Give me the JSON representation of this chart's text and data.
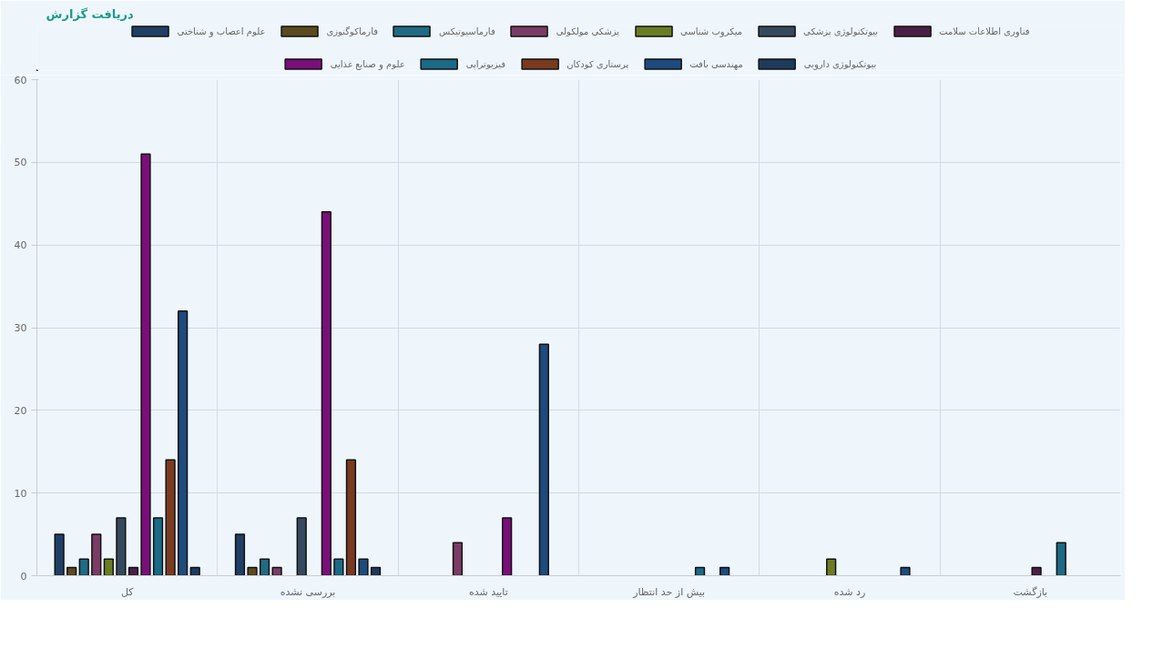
{
  "chart_data": {
    "type": "bar",
    "annotations": [
      "دریافت گزارش"
    ],
    "categories": [
      "کل",
      "بررسی نشده",
      "تایید شده",
      "بیش از حد انتظار",
      "رد شده",
      "بازگشت"
    ],
    "series": [
      {
        "name": "علوم اعصاب و شناختی",
        "color": "#1f3f66",
        "values": [
          5,
          5,
          0,
          0,
          0,
          0
        ]
      },
      {
        "name": "فارماکوگنوزی",
        "color": "#5c4a1e",
        "values": [
          1,
          1,
          0,
          0,
          0,
          0
        ]
      },
      {
        "name": "فارماسیوتیکس",
        "color": "#1f6b85",
        "values": [
          2,
          2,
          0,
          0,
          0,
          0
        ]
      },
      {
        "name": "پزشکی مولکولی",
        "color": "#7a3c66",
        "values": [
          5,
          1,
          4,
          0,
          0,
          0
        ]
      },
      {
        "name": "میکروب شناسی",
        "color": "#6b7d23",
        "values": [
          2,
          0,
          0,
          0,
          2,
          0
        ]
      },
      {
        "name": "بیوتکنولوژی پزشکی",
        "color": "#34495e",
        "values": [
          7,
          7,
          0,
          0,
          0,
          0
        ]
      },
      {
        "name": "فناوری اطلاعات سلامت",
        "color": "#4a1f45",
        "values": [
          1,
          0,
          0,
          0,
          0,
          1
        ]
      },
      {
        "name": "علوم و صنایع غذایی",
        "color": "#7a0f7a",
        "values": [
          51,
          44,
          7,
          0,
          0,
          0
        ]
      },
      {
        "name": "فیزیوتراپی",
        "color": "#1b6a86",
        "values": [
          7,
          2,
          0,
          1,
          0,
          4
        ]
      },
      {
        "name": "پرستاری کودکان",
        "color": "#7a3a20",
        "values": [
          14,
          14,
          0,
          0,
          0,
          0
        ]
      },
      {
        "name": "مهندسی بافت",
        "color": "#1e4a7e",
        "values": [
          32,
          2,
          28,
          1,
          1,
          0
        ]
      },
      {
        "name": "بیوتکنولوژی دارویی",
        "color": "#1e3a5c",
        "values": [
          1,
          1,
          0,
          0,
          0,
          0
        ]
      }
    ],
    "ylim": [
      0,
      60
    ],
    "yticks": [
      0,
      10,
      20,
      30,
      40,
      50,
      60
    ],
    "grid": true,
    "legend": "top"
  }
}
